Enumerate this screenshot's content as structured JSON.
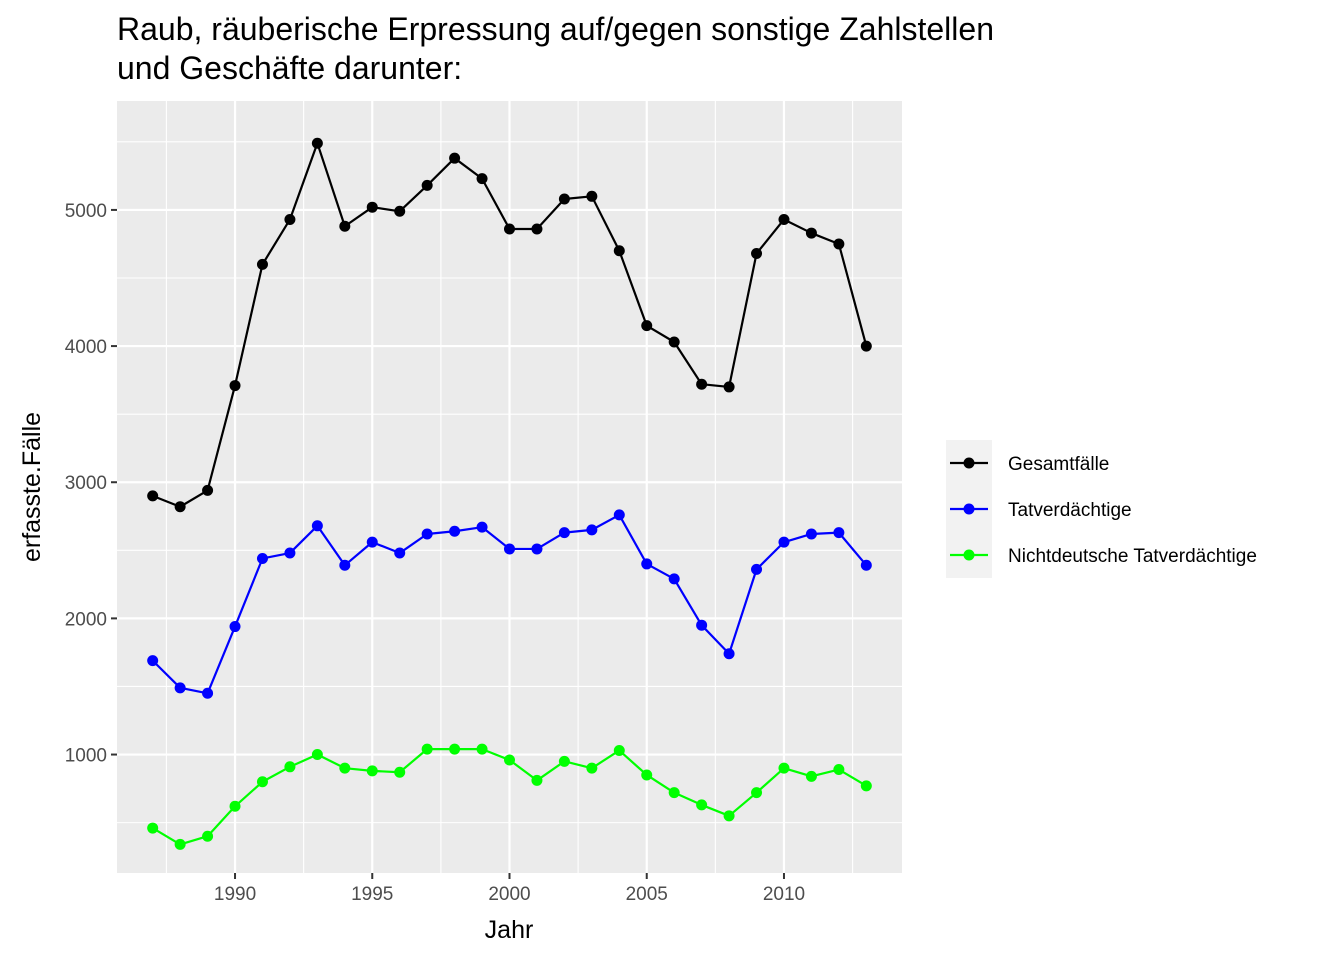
{
  "chart_data": {
    "type": "line",
    "title": "Raub, räuberische Erpressung auf/gegen sonstige Zahlstellen",
    "subtitle": "und Geschäfte darunter:",
    "xlabel": "Jahr",
    "ylabel": "erfasste.Fälle",
    "xlim": [
      1985.7,
      2014.3
    ],
    "ylim": [
      130,
      5800
    ],
    "x_ticks": [
      1990,
      1995,
      2000,
      2005,
      2010
    ],
    "y_ticks": [
      1000,
      2000,
      3000,
      4000,
      5000
    ],
    "grid": true,
    "legend_position": "right",
    "panel_color": "#ebebeb",
    "x": [
      1987,
      1988,
      1989,
      1990,
      1991,
      1992,
      1993,
      1994,
      1995,
      1996,
      1997,
      1998,
      1999,
      2000,
      2001,
      2002,
      2003,
      2004,
      2005,
      2006,
      2007,
      2008,
      2009,
      2010,
      2011,
      2012,
      2013
    ],
    "series": [
      {
        "name": "Gesamtfälle",
        "color": "#000000",
        "values": [
          2900,
          2820,
          2940,
          3710,
          4600,
          4930,
          5490,
          4880,
          5020,
          4990,
          5180,
          5380,
          5230,
          4860,
          4860,
          5080,
          5100,
          4700,
          4150,
          4030,
          3720,
          3700,
          4680,
          4930,
          4830,
          4750,
          4000
        ]
      },
      {
        "name": "Tatverdächtige",
        "color": "#0000ff",
        "values": [
          1690,
          1490,
          1450,
          1940,
          2440,
          2480,
          2680,
          2390,
          2560,
          2480,
          2620,
          2640,
          2670,
          2510,
          2510,
          2630,
          2650,
          2760,
          2400,
          2290,
          1950,
          1740,
          2360,
          2560,
          2620,
          2630,
          2390
        ]
      },
      {
        "name": "Nichtdeutsche Tatverdächtige",
        "color": "#00ff00",
        "values": [
          460,
          340,
          400,
          620,
          800,
          910,
          1000,
          900,
          880,
          870,
          1040,
          1040,
          1040,
          960,
          810,
          950,
          900,
          1030,
          850,
          720,
          630,
          550,
          720,
          900,
          840,
          890,
          770
        ]
      }
    ]
  }
}
